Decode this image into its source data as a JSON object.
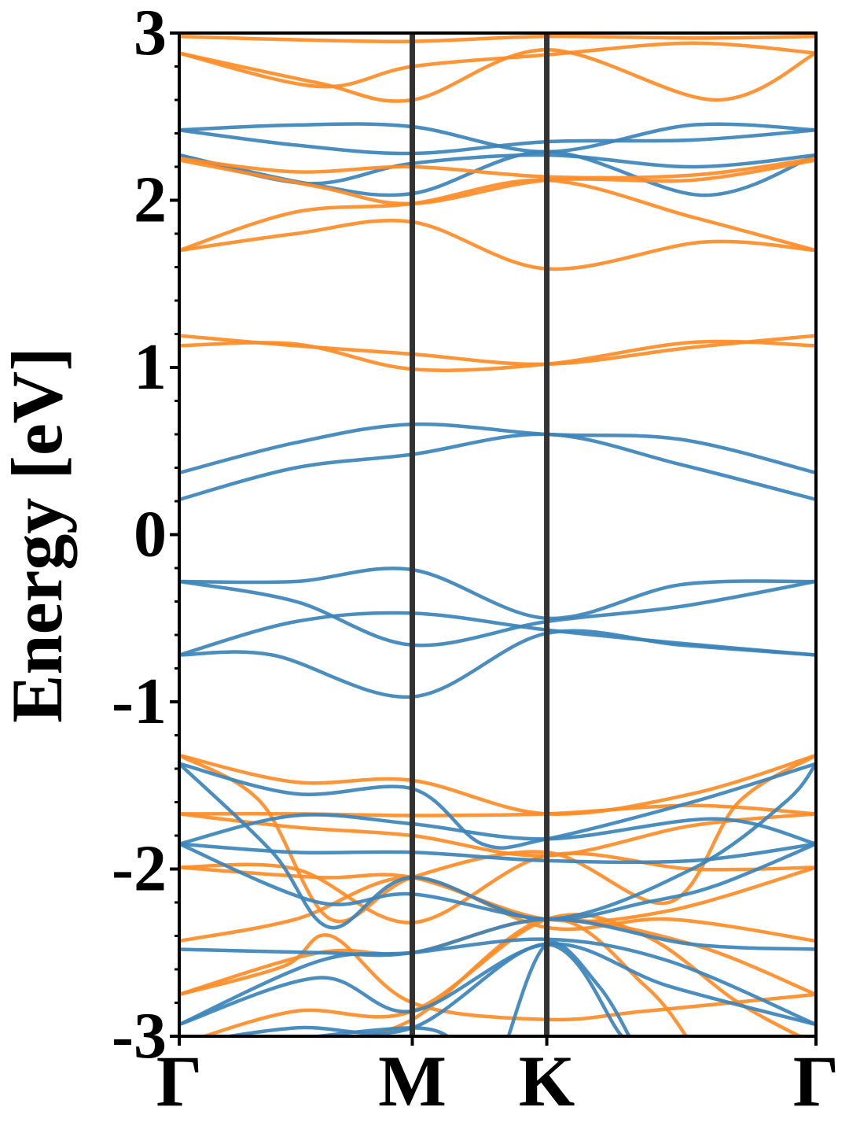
{
  "chart_data": {
    "type": "line",
    "title": "",
    "ylabel": "Energy [eV]",
    "xlabel": "",
    "ylim": [
      -3,
      3
    ],
    "x_ticks": [
      {
        "label": "Γ",
        "x": 0
      },
      {
        "label": "M",
        "x": 1
      },
      {
        "label": "K",
        "x": 1.577
      },
      {
        "label": "Γ",
        "x": 2.732
      }
    ],
    "y_ticks": [
      3,
      2,
      1,
      0,
      -1,
      -2,
      -3
    ],
    "y_tick_labels": [
      "3",
      "2",
      "1",
      "0",
      "-1",
      "-2",
      "-3"
    ],
    "y_minor_step": 0.2,
    "grid": false,
    "legend": "none",
    "vertical_lines": [
      1,
      1.577
    ],
    "colors": {
      "blue": "#3b84bb",
      "orange": "#ff8c26",
      "vline": "#333333"
    },
    "series": [
      {
        "color": "blue",
        "values": [
          [
            0,
            0.37
          ],
          [
            0.5,
            0.55
          ],
          [
            1,
            0.66
          ],
          [
            1.577,
            0.6
          ],
          [
            2.15,
            0.57
          ],
          [
            2.732,
            0.37
          ]
        ]
      },
      {
        "color": "blue",
        "values": [
          [
            0,
            0.21
          ],
          [
            0.5,
            0.4
          ],
          [
            1,
            0.48
          ],
          [
            1.577,
            0.6
          ],
          [
            2.15,
            0.42
          ],
          [
            2.732,
            0.21
          ]
        ]
      },
      {
        "color": "blue",
        "values": [
          [
            0,
            -0.28
          ],
          [
            0.5,
            -0.28
          ],
          [
            1,
            -0.21
          ],
          [
            1.577,
            -0.5
          ],
          [
            2.15,
            -0.3
          ],
          [
            2.732,
            -0.28
          ]
        ]
      },
      {
        "color": "blue",
        "values": [
          [
            0,
            -0.28
          ],
          [
            0.5,
            -0.4
          ],
          [
            1,
            -0.66
          ],
          [
            1.577,
            -0.52
          ],
          [
            2.15,
            -0.43
          ],
          [
            2.732,
            -0.28
          ]
        ]
      },
      {
        "color": "blue",
        "values": [
          [
            0,
            -0.72
          ],
          [
            0.5,
            -0.52
          ],
          [
            1,
            -0.47
          ],
          [
            1.577,
            -0.57
          ],
          [
            2.15,
            -0.65
          ],
          [
            2.732,
            -0.72
          ]
        ]
      },
      {
        "color": "blue",
        "values": [
          [
            0,
            -0.72
          ],
          [
            0.4,
            -0.72
          ],
          [
            1,
            -0.97
          ],
          [
            1.577,
            -0.59
          ],
          [
            2.15,
            -0.66
          ],
          [
            2.732,
            -0.72
          ]
        ]
      },
      {
        "color": "blue",
        "values": [
          [
            0,
            2.42
          ],
          [
            0.5,
            2.45
          ],
          [
            1,
            2.44
          ],
          [
            1.577,
            2.29
          ],
          [
            2.2,
            2.45
          ],
          [
            2.732,
            2.42
          ]
        ]
      },
      {
        "color": "blue",
        "values": [
          [
            0,
            2.42
          ],
          [
            0.5,
            2.33
          ],
          [
            1,
            2.28
          ],
          [
            1.577,
            2.35
          ],
          [
            2.2,
            2.36
          ],
          [
            2.732,
            2.42
          ]
        ]
      },
      {
        "color": "blue",
        "values": [
          [
            0,
            2.27
          ],
          [
            0.55,
            2.1
          ],
          [
            1,
            2.22
          ],
          [
            1.577,
            2.27
          ],
          [
            2.2,
            2.2
          ],
          [
            2.732,
            2.27
          ]
        ]
      },
      {
        "color": "blue",
        "values": [
          [
            0,
            2.27
          ],
          [
            0.55,
            2.1
          ],
          [
            1,
            2.04
          ],
          [
            1.577,
            2.29
          ],
          [
            2.25,
            2.03
          ],
          [
            2.732,
            2.27
          ]
        ]
      },
      {
        "color": "orange",
        "values": [
          [
            0,
            2.98
          ],
          [
            0.5,
            2.96
          ],
          [
            1,
            2.95
          ],
          [
            1.577,
            2.98
          ],
          [
            2.2,
            2.97
          ],
          [
            2.732,
            2.98
          ]
        ]
      },
      {
        "color": "orange",
        "values": [
          [
            0,
            2.88
          ],
          [
            0.6,
            2.68
          ],
          [
            1,
            2.8
          ],
          [
            1.577,
            2.87
          ],
          [
            2.2,
            2.94
          ],
          [
            2.732,
            2.88
          ]
        ]
      },
      {
        "color": "orange",
        "values": [
          [
            0,
            2.88
          ],
          [
            0.6,
            2.7
          ],
          [
            1,
            2.6
          ],
          [
            1.577,
            2.9
          ],
          [
            2.3,
            2.6
          ],
          [
            2.732,
            2.88
          ]
        ]
      },
      {
        "color": "orange",
        "values": [
          [
            0,
            2.25
          ],
          [
            0.5,
            2.17
          ],
          [
            1,
            2.2
          ],
          [
            1.577,
            2.14
          ],
          [
            2.2,
            2.15
          ],
          [
            2.732,
            2.25
          ]
        ]
      },
      {
        "color": "orange",
        "values": [
          [
            0,
            2.24
          ],
          [
            0.6,
            2.08
          ],
          [
            1,
            1.98
          ],
          [
            1.577,
            2.12
          ],
          [
            2.2,
            2.12
          ],
          [
            2.732,
            2.24
          ]
        ]
      },
      {
        "color": "orange",
        "values": [
          [
            0,
            1.7
          ],
          [
            0.5,
            1.93
          ],
          [
            1,
            1.98
          ],
          [
            1.577,
            2.12
          ],
          [
            2.2,
            1.9
          ],
          [
            2.732,
            1.7
          ]
        ]
      },
      {
        "color": "orange",
        "values": [
          [
            0,
            1.7
          ],
          [
            0.5,
            1.8
          ],
          [
            1,
            1.87
          ],
          [
            1.577,
            1.59
          ],
          [
            2.25,
            1.75
          ],
          [
            2.732,
            1.7
          ]
        ]
      },
      {
        "color": "orange",
        "values": [
          [
            0,
            1.19
          ],
          [
            0.5,
            1.13
          ],
          [
            1,
            1.08
          ],
          [
            1.577,
            1.02
          ],
          [
            2.2,
            1.12
          ],
          [
            2.732,
            1.19
          ]
        ]
      },
      {
        "color": "orange",
        "values": [
          [
            0,
            1.13
          ],
          [
            0.5,
            1.14
          ],
          [
            1,
            0.99
          ],
          [
            1.577,
            1.02
          ],
          [
            2.2,
            1.15
          ],
          [
            2.732,
            1.13
          ]
        ]
      },
      {
        "color": "orange",
        "values": [
          [
            0,
            -1.32
          ],
          [
            0.5,
            -1.48
          ],
          [
            1,
            -1.47
          ],
          [
            1.577,
            -1.67
          ],
          [
            2.2,
            -1.55
          ],
          [
            2.732,
            -1.32
          ]
        ]
      },
      {
        "color": "orange",
        "values": [
          [
            0,
            -1.67
          ],
          [
            0.5,
            -1.67
          ],
          [
            1,
            -1.68
          ],
          [
            1.577,
            -1.67
          ],
          [
            2.2,
            -1.62
          ],
          [
            2.732,
            -1.67
          ]
        ]
      },
      {
        "color": "orange",
        "values": [
          [
            0,
            -1.67
          ],
          [
            0.5,
            -1.75
          ],
          [
            1,
            -1.8
          ],
          [
            1.577,
            -1.92
          ],
          [
            2.2,
            -1.74
          ],
          [
            2.732,
            -1.67
          ]
        ]
      },
      {
        "color": "orange",
        "values": [
          [
            0,
            -1.32
          ],
          [
            0.35,
            -1.6
          ],
          [
            0.65,
            -2.3
          ],
          [
            1,
            -2.05
          ],
          [
            1.577,
            -1.9
          ],
          [
            2.1,
            -2.2
          ],
          [
            2.4,
            -1.6
          ],
          [
            2.732,
            -1.32
          ]
        ]
      },
      {
        "color": "orange",
        "values": [
          [
            0,
            -1.99
          ],
          [
            0.5,
            -2.0
          ],
          [
            1,
            -2.32
          ],
          [
            1.577,
            -1.92
          ],
          [
            2.2,
            -2.0
          ],
          [
            2.732,
            -1.99
          ]
        ]
      },
      {
        "color": "orange",
        "values": [
          [
            0,
            -1.99
          ],
          [
            0.6,
            -2.05
          ],
          [
            1,
            -2.05
          ],
          [
            1.577,
            -2.3
          ],
          [
            2.1,
            -2.25
          ],
          [
            2.732,
            -1.99
          ]
        ]
      },
      {
        "color": "orange",
        "values": [
          [
            0,
            -2.43
          ],
          [
            0.5,
            -2.3
          ],
          [
            1,
            -2.05
          ],
          [
            1.577,
            -2.35
          ],
          [
            2.1,
            -2.3
          ],
          [
            2.732,
            -2.43
          ]
        ]
      },
      {
        "color": "orange",
        "values": [
          [
            0,
            -2.75
          ],
          [
            0.6,
            -2.5
          ],
          [
            1,
            -2.5
          ],
          [
            1.577,
            -2.3
          ],
          [
            2.2,
            -2.45
          ],
          [
            2.732,
            -2.75
          ]
        ]
      },
      {
        "color": "orange",
        "values": [
          [
            0,
            -2.75
          ],
          [
            0.45,
            -2.58
          ],
          [
            0.65,
            -2.4
          ],
          [
            1,
            -2.8
          ],
          [
            1.577,
            -2.9
          ],
          [
            2.0,
            -2.85
          ],
          [
            2.732,
            -2.75
          ]
        ]
      },
      {
        "color": "orange",
        "values": [
          [
            0,
            -3.05
          ],
          [
            0.5,
            -2.85
          ],
          [
            1,
            -2.85
          ],
          [
            1.577,
            -2.3
          ],
          [
            2.0,
            -2.4
          ],
          [
            2.4,
            -2.8
          ],
          [
            2.732,
            -3.05
          ]
        ]
      },
      {
        "color": "orange",
        "values": [
          [
            0.6,
            -3.05
          ],
          [
            1,
            -2.9
          ],
          [
            1.577,
            -2.3
          ],
          [
            2.0,
            -2.7
          ],
          [
            2.2,
            -3.05
          ]
        ]
      },
      {
        "color": "blue",
        "values": [
          [
            0,
            -1.37
          ],
          [
            0.5,
            -1.55
          ],
          [
            1,
            -1.52
          ],
          [
            1.3,
            -1.85
          ],
          [
            1.577,
            -1.82
          ],
          [
            2.2,
            -1.6
          ],
          [
            2.732,
            -1.37
          ]
        ]
      },
      {
        "color": "blue",
        "values": [
          [
            0,
            -1.85
          ],
          [
            0.5,
            -1.68
          ],
          [
            1,
            -1.73
          ],
          [
            1.577,
            -1.82
          ],
          [
            2.3,
            -1.7
          ],
          [
            2.732,
            -1.85
          ]
        ]
      },
      {
        "color": "blue",
        "values": [
          [
            0,
            -1.85
          ],
          [
            0.5,
            -1.9
          ],
          [
            1,
            -1.9
          ],
          [
            1.577,
            -1.95
          ],
          [
            2.2,
            -1.95
          ],
          [
            2.732,
            -1.85
          ]
        ]
      },
      {
        "color": "blue",
        "values": [
          [
            0,
            -1.37
          ],
          [
            0.4,
            -1.9
          ],
          [
            0.65,
            -2.35
          ],
          [
            1,
            -2.05
          ],
          [
            1.577,
            -2.3
          ],
          [
            2.2,
            -2.0
          ],
          [
            2.6,
            -1.6
          ],
          [
            2.732,
            -1.37
          ]
        ]
      },
      {
        "color": "blue",
        "values": [
          [
            0,
            -1.85
          ],
          [
            0.6,
            -2.2
          ],
          [
            1,
            -2.15
          ],
          [
            1.577,
            -2.3
          ],
          [
            2.0,
            -2.2
          ],
          [
            2.3,
            -2.1
          ],
          [
            2.732,
            -1.85
          ]
        ]
      },
      {
        "color": "blue",
        "values": [
          [
            0,
            -2.48
          ],
          [
            0.6,
            -2.5
          ],
          [
            1,
            -2.5
          ],
          [
            1.577,
            -2.3
          ],
          [
            2.2,
            -2.45
          ],
          [
            2.732,
            -2.48
          ]
        ]
      },
      {
        "color": "blue",
        "values": [
          [
            0,
            -2.93
          ],
          [
            0.6,
            -2.55
          ],
          [
            1,
            -2.5
          ],
          [
            1.577,
            -2.42
          ],
          [
            2.1,
            -2.55
          ],
          [
            2.732,
            -2.93
          ]
        ]
      },
      {
        "color": "blue",
        "values": [
          [
            0,
            -2.93
          ],
          [
            0.6,
            -2.65
          ],
          [
            1,
            -2.85
          ],
          [
            1.577,
            -2.45
          ],
          [
            2.1,
            -2.7
          ],
          [
            2.732,
            -2.93
          ]
        ]
      },
      {
        "color": "blue",
        "values": [
          [
            0,
            -3.05
          ],
          [
            0.5,
            -2.95
          ],
          [
            1,
            -2.95
          ],
          [
            1.577,
            -2.45
          ],
          [
            1.9,
            -3.0
          ],
          [
            2.0,
            -3.05
          ]
        ]
      },
      {
        "color": "blue",
        "values": [
          [
            0.3,
            -3.05
          ],
          [
            1,
            -2.95
          ],
          [
            1.2,
            -3.05
          ]
        ]
      },
      {
        "color": "blue",
        "values": [
          [
            1.4,
            -3.05
          ],
          [
            1.577,
            -2.45
          ],
          [
            1.8,
            -2.7
          ],
          [
            1.95,
            -3.05
          ]
        ]
      }
    ]
  }
}
